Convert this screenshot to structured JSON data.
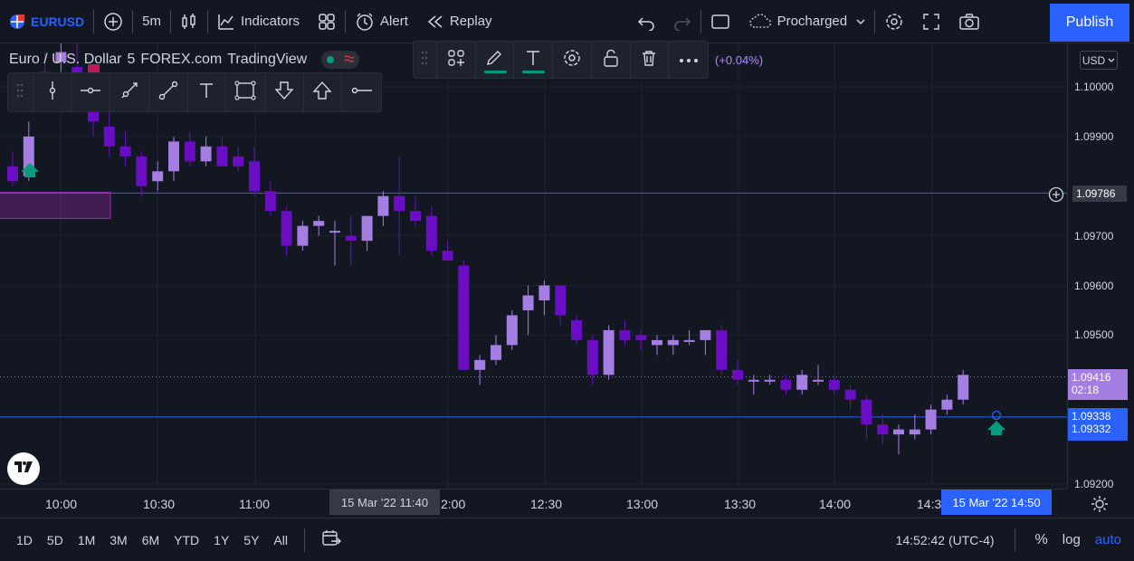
{
  "toolbar": {
    "symbol": "EURUSD",
    "interval": "5m",
    "indicators_label": "Indicators",
    "alert_label": "Alert",
    "replay_label": "Replay",
    "layout_name": "Procharged",
    "publish_label": "Publish"
  },
  "legend": {
    "name": "Euro / U.S. Dollar",
    "interval": "5",
    "exchange": "FOREX.com",
    "provider": "TradingView",
    "change": "(+0.04%)"
  },
  "currency": "USD",
  "price_axis": {
    "ticks": [
      {
        "label": "1.10000",
        "price": 1.1
      },
      {
        "label": "1.09900",
        "price": 1.099
      },
      {
        "label": "1.09700",
        "price": 1.097
      },
      {
        "label": "1.09600",
        "price": 1.096
      },
      {
        "label": "1.09500",
        "price": 1.095
      },
      {
        "label": "1.09200",
        "price": 1.092
      }
    ],
    "crosshair_label": "1.09786",
    "current_price": "1.09416",
    "countdown": "02:18",
    "line_label_1": "1.09338",
    "line_label_2": "1.09332"
  },
  "time_axis": {
    "labels": [
      "10:00",
      "10:30",
      "11:00",
      "12:00",
      "12:30",
      "13:00",
      "13:30",
      "14:00",
      "14:3"
    ],
    "crosshair_time": "15 Mar '22  11:40",
    "last_time": "15 Mar '22  14:50"
  },
  "bottom": {
    "ranges": [
      "1D",
      "5D",
      "1M",
      "3M",
      "6M",
      "YTD",
      "1Y",
      "5Y",
      "All"
    ],
    "clock": "14:52:42 (UTC-4)",
    "percent": "%",
    "log": "log",
    "auto": "auto"
  },
  "colors": {
    "up": "#a57ee3",
    "down": "#6a0dc4",
    "line": "#2962ff",
    "accent": "#2962ff"
  },
  "chart_data": {
    "type": "candlestick",
    "candles": [
      [
        1.0984,
        1.0987,
        1.098,
        1.0981
      ],
      [
        1.0982,
        1.0993,
        1.0981,
        1.099
      ],
      [
        1.1003,
        1.1007,
        1.0999,
        1.1001
      ],
      [
        1.1005,
        1.101,
        1.1003,
        1.1007
      ],
      [
        1.1004,
        1.1009,
        1.0998,
        1.1
      ],
      [
        1.1001,
        1.1003,
        1.099,
        1.0993
      ],
      [
        1.0992,
        1.0998,
        1.0986,
        1.0988
      ],
      [
        1.0988,
        1.0991,
        1.0984,
        1.0986
      ],
      [
        1.0986,
        1.0987,
        1.0978,
        1.098
      ],
      [
        1.0981,
        1.0985,
        1.0979,
        1.0983
      ],
      [
        1.0983,
        1.099,
        1.0981,
        1.0989
      ],
      [
        1.0989,
        1.0991,
        1.0984,
        1.0985
      ],
      [
        1.0985,
        1.099,
        1.0984,
        1.0988
      ],
      [
        1.0988,
        1.099,
        1.0984,
        1.0984
      ],
      [
        1.0986,
        1.0988,
        1.0983,
        1.0984
      ],
      [
        1.0985,
        1.0988,
        1.0978,
        1.0979
      ],
      [
        1.0979,
        1.0981,
        1.0974,
        1.0975
      ],
      [
        1.0975,
        1.0976,
        1.0966,
        1.0968
      ],
      [
        1.0968,
        1.0973,
        1.0967,
        1.0972
      ],
      [
        1.0972,
        1.0974,
        1.097,
        1.0973
      ],
      [
        1.0971,
        1.0973,
        1.0964,
        1.0971
      ],
      [
        1.097,
        1.0974,
        1.0964,
        1.0969
      ],
      [
        1.0969,
        1.0974,
        1.0967,
        1.0974
      ],
      [
        1.0974,
        1.0979,
        1.0972,
        1.0978
      ],
      [
        1.0978,
        1.0986,
        1.0966,
        1.0975
      ],
      [
        1.0975,
        1.0978,
        1.0972,
        1.0973
      ],
      [
        1.0974,
        1.0976,
        1.0966,
        1.0967
      ],
      [
        1.0967,
        1.0969,
        1.0965,
        1.0965
      ],
      [
        1.0964,
        1.0965,
        1.0943,
        1.0943
      ],
      [
        1.0943,
        1.0946,
        1.094,
        1.0945
      ],
      [
        1.0945,
        1.095,
        1.0944,
        1.0948
      ],
      [
        1.0948,
        1.0955,
        1.0947,
        1.0954
      ],
      [
        1.0955,
        1.096,
        1.095,
        1.0958
      ],
      [
        1.0957,
        1.0961,
        1.0954,
        1.096
      ],
      [
        1.096,
        1.096,
        1.0952,
        1.0954
      ],
      [
        1.0953,
        1.0954,
        1.0948,
        1.0949
      ],
      [
        1.0949,
        1.095,
        1.094,
        1.0942
      ],
      [
        1.0942,
        1.0952,
        1.0941,
        1.0951
      ],
      [
        1.0951,
        1.0953,
        1.0948,
        1.0949
      ],
      [
        1.095,
        1.0951,
        1.0947,
        1.0949
      ],
      [
        1.0948,
        1.095,
        1.0946,
        1.0949
      ],
      [
        1.0948,
        1.095,
        1.0946,
        1.0949
      ],
      [
        1.0949,
        1.0951,
        1.0948,
        1.0949
      ],
      [
        1.0949,
        1.0951,
        1.0946,
        1.0951
      ],
      [
        1.0951,
        1.0952,
        1.0942,
        1.0943
      ],
      [
        1.0943,
        1.0945,
        1.094,
        1.0941
      ],
      [
        1.0941,
        1.0942,
        1.0938,
        1.0941
      ],
      [
        1.0941,
        1.0942,
        1.094,
        1.0941
      ],
      [
        1.0941,
        1.0942,
        1.0938,
        1.0939
      ],
      [
        1.0939,
        1.0943,
        1.0938,
        1.0942
      ],
      [
        1.0941,
        1.0944,
        1.094,
        1.0941
      ],
      [
        1.0941,
        1.0942,
        1.0938,
        1.0939
      ],
      [
        1.0939,
        1.094,
        1.0935,
        1.0937
      ],
      [
        1.0937,
        1.0938,
        1.0929,
        1.0932
      ],
      [
        1.0932,
        1.0934,
        1.0928,
        1.093
      ],
      [
        1.093,
        1.0932,
        1.0926,
        1.0931
      ],
      [
        1.093,
        1.0934,
        1.0929,
        1.0931
      ],
      [
        1.0931,
        1.0936,
        1.093,
        1.0935
      ],
      [
        1.0935,
        1.0938,
        1.0934,
        1.0937
      ],
      [
        1.0937,
        1.0943,
        1.0936,
        1.0942
      ]
    ],
    "horizontal_lines": [
      1.09786,
      1.09335
    ]
  }
}
